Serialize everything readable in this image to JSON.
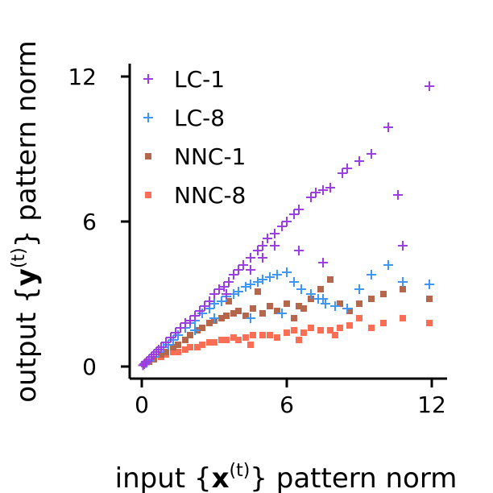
{
  "chart_data": {
    "type": "scatter",
    "xlabel": {
      "prefix": "input {",
      "var": "x",
      "sup": "(t)",
      "suffix": "} pattern norm"
    },
    "ylabel": {
      "prefix": "output {",
      "var": "y",
      "sup": "(t)",
      "suffix": "} pattern norm"
    },
    "xlim": [
      -0.5,
      12.6
    ],
    "ylim": [
      -0.5,
      12.6
    ],
    "xticks": [
      0,
      6,
      12
    ],
    "yticks": [
      0,
      6,
      12
    ],
    "grid": false,
    "legend_position": "top-left",
    "series": [
      {
        "name": "LC-1",
        "marker": "plus",
        "color": "#9b3fe0",
        "x": [
          0.05,
          0.1,
          0.15,
          0.2,
          0.3,
          0.4,
          0.5,
          0.6,
          0.7,
          0.8,
          1.0,
          1.2,
          1.4,
          1.6,
          1.8,
          2.0,
          2.2,
          2.4,
          2.6,
          2.8,
          3.0,
          3.2,
          3.4,
          3.6,
          3.8,
          4.0,
          4.2,
          4.5,
          4.8,
          5.0,
          5.2,
          5.5,
          5.8,
          6.0,
          6.3,
          6.5,
          7.0,
          7.2,
          7.5,
          7.8,
          8.3,
          8.5,
          9.0,
          9.5,
          10.2,
          10.6,
          10.8,
          11.9,
          3.5,
          4.5,
          5.0,
          5.5,
          6.5,
          7.5
        ],
        "y": [
          0.05,
          0.1,
          0.15,
          0.2,
          0.3,
          0.4,
          0.5,
          0.6,
          0.7,
          0.8,
          1.0,
          1.2,
          1.4,
          1.6,
          1.8,
          1.9,
          2.1,
          2.3,
          2.5,
          2.7,
          3.0,
          3.2,
          3.3,
          3.5,
          3.8,
          4.0,
          4.2,
          4.5,
          4.8,
          5.0,
          5.3,
          5.5,
          5.8,
          6.0,
          6.3,
          6.5,
          7.0,
          7.2,
          7.3,
          7.4,
          8.0,
          8.2,
          8.5,
          8.8,
          9.9,
          7.1,
          5.0,
          11.6,
          3.0,
          4.0,
          4.5,
          5.0,
          4.8,
          4.3
        ]
      },
      {
        "name": "LC-8",
        "marker": "plus",
        "color": "#3e97f2",
        "x": [
          0.1,
          0.2,
          0.3,
          0.5,
          0.7,
          0.9,
          1.1,
          1.3,
          1.5,
          1.8,
          2.0,
          2.2,
          2.5,
          2.8,
          3.0,
          3.3,
          3.5,
          3.8,
          4.0,
          4.3,
          4.5,
          4.8,
          5.0,
          5.3,
          5.6,
          6.0,
          6.3,
          6.6,
          7.0,
          7.3,
          7.6,
          8.0,
          8.5,
          9.0,
          9.5,
          10.2,
          10.8,
          11.9,
          2.2,
          3.0,
          4.5,
          5.8,
          7.5
        ],
        "y": [
          0.1,
          0.15,
          0.25,
          0.4,
          0.6,
          0.8,
          0.9,
          1.1,
          1.3,
          1.6,
          1.8,
          1.9,
          2.2,
          2.4,
          2.6,
          2.7,
          2.9,
          3.0,
          3.1,
          3.3,
          3.4,
          3.5,
          3.6,
          3.7,
          3.8,
          3.9,
          3.5,
          3.2,
          3.0,
          2.8,
          2.6,
          2.5,
          2.4,
          3.2,
          3.8,
          4.2,
          3.5,
          3.4,
          1.5,
          2.0,
          2.0,
          2.2,
          2.8
        ]
      },
      {
        "name": "NNC-1",
        "marker": "square",
        "color": "#b4674c",
        "x": [
          0.1,
          0.3,
          0.5,
          0.8,
          1.0,
          1.3,
          1.5,
          1.8,
          2.0,
          2.3,
          2.5,
          2.8,
          3.0,
          3.3,
          3.5,
          3.8,
          4.0,
          4.3,
          4.6,
          5.0,
          5.3,
          5.6,
          6.0,
          6.3,
          6.7,
          7.0,
          7.4,
          7.8,
          8.2,
          8.6,
          9.0,
          9.5,
          10.0,
          10.8,
          11.9,
          3.6,
          4.8,
          6.5
        ],
        "y": [
          0.1,
          0.2,
          0.3,
          0.5,
          0.6,
          0.8,
          0.9,
          1.1,
          1.3,
          1.5,
          1.6,
          1.8,
          1.9,
          2.0,
          2.1,
          2.2,
          2.3,
          2.1,
          2.4,
          2.2,
          2.5,
          2.3,
          2.6,
          2.0,
          2.4,
          2.8,
          3.2,
          3.6,
          2.6,
          2.3,
          2.6,
          2.8,
          3.0,
          3.2,
          2.8,
          2.7,
          3.1,
          2.5
        ]
      },
      {
        "name": "NNC-8",
        "marker": "square",
        "color": "#fa6e56",
        "x": [
          0.1,
          0.3,
          0.5,
          0.8,
          1.0,
          1.3,
          1.5,
          1.8,
          2.0,
          2.3,
          2.5,
          2.8,
          3.0,
          3.3,
          3.5,
          3.8,
          4.0,
          4.3,
          4.6,
          5.0,
          5.3,
          5.6,
          6.0,
          6.3,
          6.7,
          7.0,
          7.4,
          7.8,
          8.2,
          8.6,
          9.0,
          9.5,
          10.0,
          10.8,
          11.9,
          4.5,
          6.5,
          8.0
        ],
        "y": [
          0.1,
          0.2,
          0.3,
          0.4,
          0.5,
          0.6,
          0.6,
          0.7,
          0.8,
          0.8,
          0.9,
          1.0,
          1.0,
          1.1,
          1.1,
          1.2,
          1.1,
          1.2,
          1.3,
          1.3,
          1.3,
          1.2,
          1.4,
          1.5,
          1.4,
          1.6,
          1.5,
          1.5,
          1.6,
          1.7,
          2.0,
          1.6,
          1.8,
          2.0,
          1.8,
          0.9,
          1.1,
          1.3
        ]
      }
    ]
  }
}
